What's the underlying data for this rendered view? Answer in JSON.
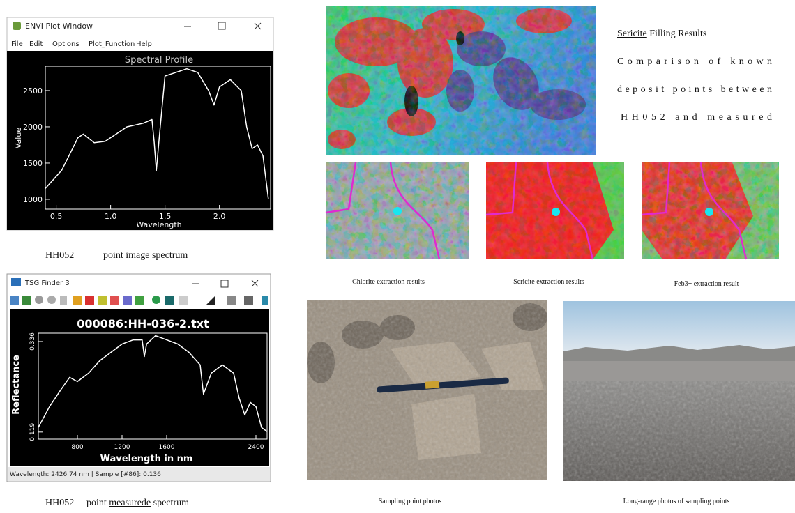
{
  "envi_window": {
    "title": "ENVI Plot Window",
    "menu": [
      "File",
      "Edit",
      "Options",
      "Plot_Function",
      "Help"
    ],
    "plot": {
      "type": "line",
      "title": "Spectral Profile",
      "y_label": "Value",
      "x_label": "Wavelength",
      "x": [
        0.4,
        0.55,
        0.7,
        0.75,
        0.85,
        0.95,
        1.1,
        1.15,
        1.3,
        1.38,
        1.4,
        1.42,
        1.45,
        1.5,
        1.6,
        1.7,
        1.8,
        1.9,
        1.95,
        2.0,
        2.1,
        2.2,
        2.25,
        2.3,
        2.35,
        2.4,
        2.45
      ],
      "values": [
        1150,
        1400,
        1850,
        1900,
        1780,
        1800,
        1950,
        2000,
        2050,
        2100,
        1800,
        1400,
        1900,
        2700,
        2750,
        2800,
        2750,
        2500,
        2300,
        2550,
        2650,
        2500,
        2000,
        1700,
        1750,
        1600,
        1000
      ],
      "xlim": [
        0.4,
        2.47
      ],
      "ylim": [
        865,
        2836
      ],
      "xticks": [
        0.5,
        {
          "value": 1,
          "label": "1.0"
        },
        1.5,
        {
          "value": 2,
          "label": "2.0"
        }
      ],
      "yticks": [
        1000,
        1500,
        2000,
        2500
      ],
      "color": "#ffffff"
    }
  },
  "envi_caption": {
    "sample": "HH052",
    "text": "point image spectrum"
  },
  "tsg_window": {
    "title": "TSG Finder 3",
    "plot": {
      "type": "line",
      "title": "000086:HH-036-2.txt",
      "y_label": "Reflectance",
      "x_label": "Wavelength in nm",
      "x": [
        450,
        550,
        650,
        730,
        800,
        900,
        1000,
        1100,
        1200,
        1300,
        1380,
        1400,
        1420,
        1500,
        1600,
        1700,
        1800,
        1900,
        1930,
        2000,
        2100,
        2200,
        2250,
        2300,
        2350,
        2400,
        2450,
        2500
      ],
      "values": [
        0.13,
        0.18,
        0.22,
        0.25,
        0.24,
        0.26,
        0.29,
        0.31,
        0.33,
        0.34,
        0.34,
        0.3,
        0.33,
        0.35,
        0.34,
        0.33,
        0.31,
        0.28,
        0.21,
        0.26,
        0.28,
        0.26,
        0.2,
        0.16,
        0.19,
        0.18,
        0.13,
        0.12
      ],
      "xlim": [
        450,
        2500
      ],
      "ylim": [
        0.102,
        0.356
      ],
      "xticks": [
        800,
        1200,
        1600,
        2400
      ],
      "yticks": [
        0.119,
        0.336
      ],
      "color": "#ffffff"
    },
    "status": "Wavelength: 2426.74 nm | Sample [#86]: 0.136"
  },
  "tsg_caption": {
    "sample": "HH052",
    "text_before": "point ",
    "underlined": "measurede",
    "text_after": " spectrum"
  },
  "map_description": {
    "heading_underlined": "Sericite",
    "heading_rest": " Filling Results",
    "lines": [
      "Comparison of known",
      "deposit points between",
      "HH052 and measured"
    ]
  },
  "extraction_captions": [
    "Chlorite extraction results",
    "Sericite extraction results",
    "Feb3+ extraction result"
  ],
  "photo_captions": [
    "Sampling point photos",
    "Long-range photos of sampling points"
  ]
}
